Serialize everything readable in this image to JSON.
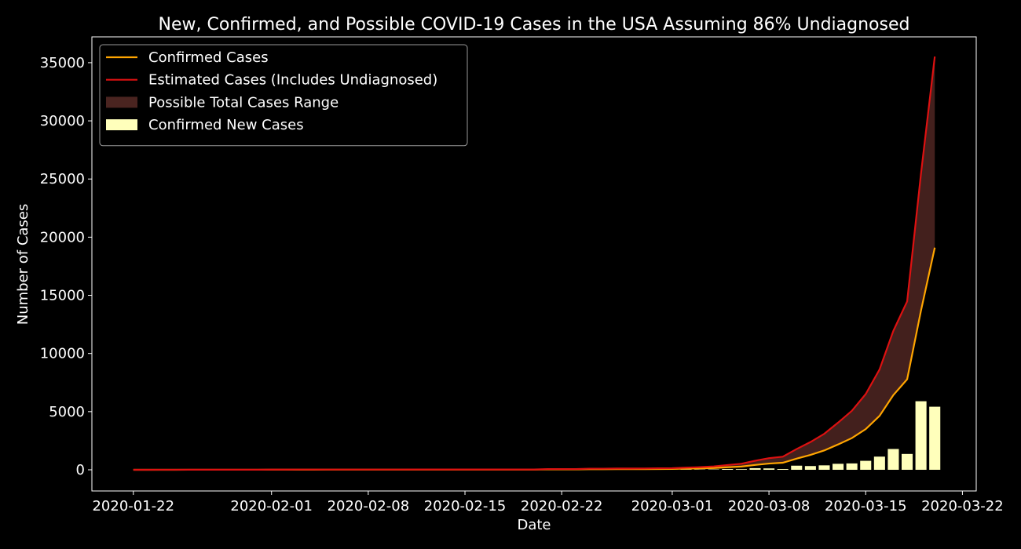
{
  "chart_data": {
    "type": "line",
    "title": "New, Confirmed, and Possible COVID-19 Cases in the USA Assuming 86% Undiagnosed",
    "x_label": "Date",
    "y_label": "Number of Cases",
    "x": [
      "2020-01-22",
      "2020-01-23",
      "2020-01-24",
      "2020-01-25",
      "2020-01-26",
      "2020-01-27",
      "2020-01-28",
      "2020-01-29",
      "2020-01-30",
      "2020-01-31",
      "2020-02-01",
      "2020-02-02",
      "2020-02-03",
      "2020-02-04",
      "2020-02-05",
      "2020-02-06",
      "2020-02-07",
      "2020-02-08",
      "2020-02-09",
      "2020-02-10",
      "2020-02-11",
      "2020-02-12",
      "2020-02-13",
      "2020-02-14",
      "2020-02-15",
      "2020-02-16",
      "2020-02-17",
      "2020-02-18",
      "2020-02-19",
      "2020-02-20",
      "2020-02-21",
      "2020-02-22",
      "2020-02-23",
      "2020-02-24",
      "2020-02-25",
      "2020-02-26",
      "2020-02-27",
      "2020-02-28",
      "2020-02-29",
      "2020-03-01",
      "2020-03-02",
      "2020-03-03",
      "2020-03-04",
      "2020-03-05",
      "2020-03-06",
      "2020-03-07",
      "2020-03-08",
      "2020-03-09",
      "2020-03-10",
      "2020-03-11",
      "2020-03-12",
      "2020-03-13",
      "2020-03-14",
      "2020-03-15",
      "2020-03-16",
      "2020-03-17",
      "2020-03-18",
      "2020-03-19",
      "2020-03-20"
    ],
    "series": [
      {
        "name": "Confirmed Cases",
        "type": "line",
        "color": "#ffa500",
        "values": [
          1,
          1,
          2,
          2,
          5,
          5,
          5,
          5,
          5,
          6,
          8,
          8,
          11,
          11,
          12,
          12,
          12,
          12,
          12,
          12,
          13,
          13,
          14,
          14,
          14,
          14,
          14,
          14,
          14,
          14,
          35,
          35,
          35,
          53,
          53,
          59,
          60,
          62,
          70,
          76,
          101,
          122,
          153,
          221,
          278,
          417,
          537,
          605,
          959,
          1281,
          1663,
          2179,
          2727,
          3499,
          4632,
          6421,
          7783,
          13677,
          19100
        ]
      },
      {
        "name": "Estimated Cases (Includes Undiagnosed)",
        "type": "line",
        "color": "#dd1111",
        "values": [
          2,
          2,
          4,
          4,
          9,
          9,
          9,
          9,
          9,
          11,
          15,
          15,
          20,
          20,
          22,
          22,
          22,
          22,
          22,
          22,
          24,
          24,
          26,
          26,
          26,
          26,
          26,
          26,
          26,
          26,
          65,
          65,
          65,
          99,
          99,
          110,
          112,
          115,
          130,
          141,
          188,
          227,
          285,
          411,
          517,
          776,
          999,
          1125,
          1784,
          2383,
          3093,
          4053,
          5072,
          6508,
          8616,
          11943,
          14476,
          25439,
          35526
        ]
      },
      {
        "name": "Possible Total Cases Range",
        "type": "fill_between",
        "color": "#4a2420",
        "between": [
          0,
          1
        ]
      },
      {
        "name": "Confirmed New Cases",
        "type": "bar",
        "color": "#ffffbb",
        "values": [
          null,
          0,
          1,
          0,
          3,
          0,
          0,
          0,
          0,
          1,
          2,
          0,
          3,
          0,
          1,
          0,
          0,
          0,
          0,
          0,
          1,
          0,
          1,
          0,
          0,
          0,
          0,
          0,
          0,
          0,
          21,
          0,
          0,
          18,
          0,
          6,
          1,
          2,
          8,
          6,
          25,
          21,
          31,
          68,
          57,
          139,
          120,
          68,
          354,
          322,
          382,
          516,
          548,
          772,
          1133,
          1789,
          1362,
          5894,
          5423
        ]
      }
    ],
    "xlim": [
      "2020-01-19",
      "2020-03-23"
    ],
    "xticks": [
      "2020-01-22",
      "2020-02-01",
      "2020-02-08",
      "2020-02-15",
      "2020-02-22",
      "2020-03-01",
      "2020-03-08",
      "2020-03-15",
      "2020-03-22"
    ],
    "ylim": [
      -1820,
      37220
    ],
    "yticks": [
      0,
      5000,
      10000,
      15000,
      20000,
      25000,
      30000,
      35000
    ],
    "legend": "upper left"
  }
}
